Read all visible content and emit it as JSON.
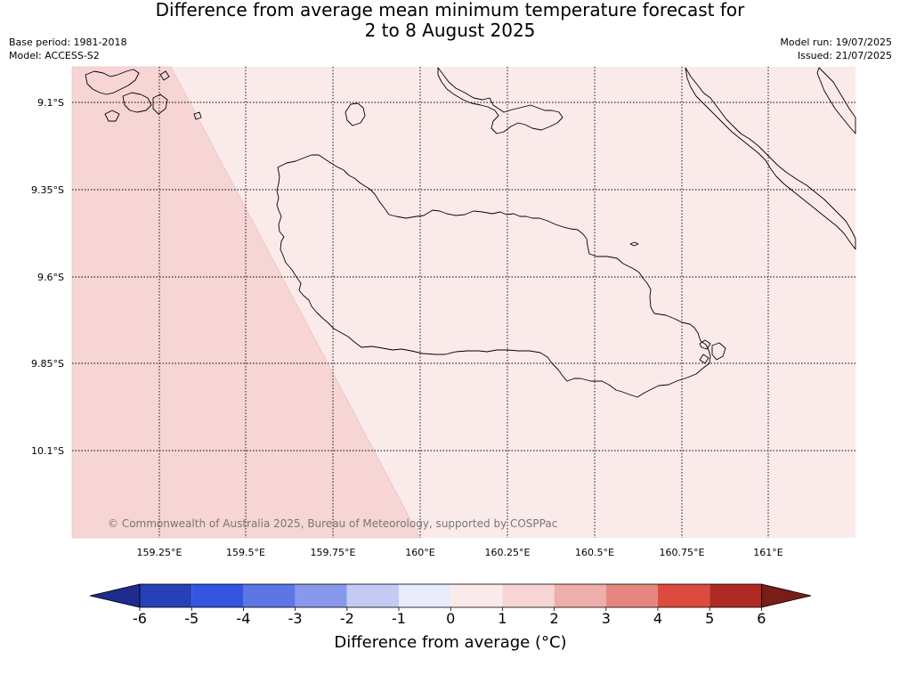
{
  "title_line1": "Difference from average mean minimum temperature forecast for",
  "title_line2": "2 to 8 August 2025",
  "base_period": "Base period: 1981-2018",
  "model": "Model: ACCESS-S2",
  "model_run": "Model run: 19/07/2025",
  "issued": "Issued: 21/07/2025",
  "copyright": "© Commonwealth of Australia 2025, Bureau of Meteorology, supported by COSPPac",
  "lat_labels": [
    "9.1°S",
    "9.35°S",
    "9.6°S",
    "9.85°S",
    "10.1°S"
  ],
  "lon_labels": [
    "159.25°E",
    "159.5°E",
    "159.75°E",
    "160°E",
    "160.25°E",
    "160.5°E",
    "160.75°E",
    "161°E"
  ],
  "colorbar": {
    "title": "Difference from average (°C)",
    "ticks": [
      "-6",
      "-5",
      "-4",
      "-3",
      "-2",
      "-1",
      "0",
      "1",
      "2",
      "3",
      "4",
      "5",
      "6"
    ],
    "colors": [
      "#1e2c8e",
      "#2640b8",
      "#3355e0",
      "#5c76e6",
      "#8899ec",
      "#c3cbf5",
      "#e8ebfb",
      "#fbeaea",
      "#f6d5d4",
      "#eeaeab",
      "#e7857f",
      "#dd4b3e",
      "#ae2a22",
      "#7a1c17"
    ]
  },
  "map_fill": {
    "zero_to_one": "#fbeaea",
    "one_to_two": "#f6d5d4"
  }
}
